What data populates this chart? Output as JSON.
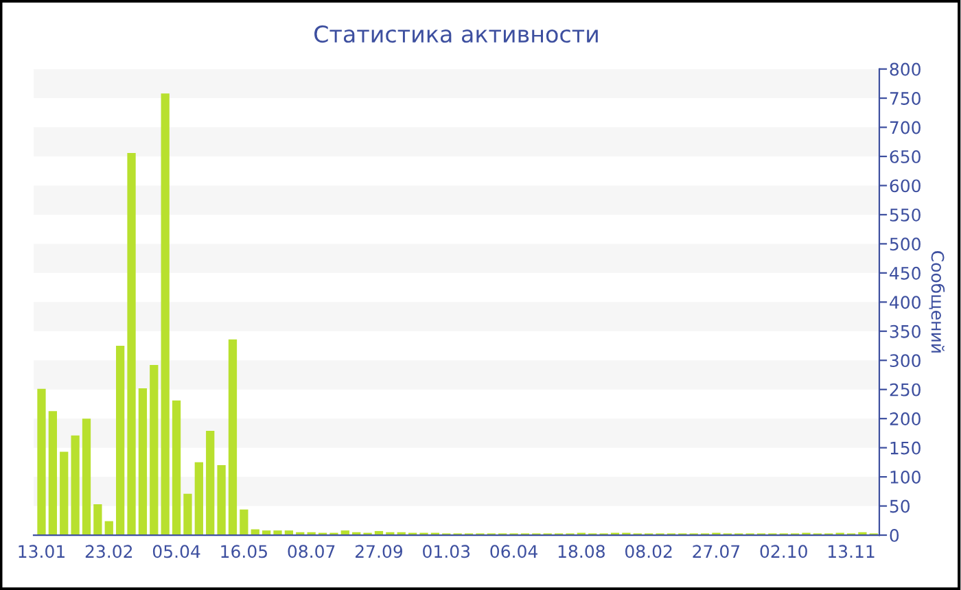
{
  "chart_data": {
    "type": "bar",
    "title": "Статистика активности",
    "ylabel": "Сообщений",
    "color": "#b8e02e",
    "categories": [
      "13.01",
      null,
      null,
      null,
      null,
      null,
      "23.02",
      null,
      null,
      null,
      null,
      null,
      "05.04",
      null,
      null,
      null,
      null,
      null,
      "16.05",
      null,
      null,
      null,
      null,
      null,
      "08.07",
      null,
      null,
      null,
      null,
      null,
      "27.09",
      null,
      null,
      null,
      null,
      null,
      "01.03",
      null,
      null,
      null,
      null,
      null,
      "06.04",
      null,
      null,
      null,
      null,
      null,
      "18.08",
      null,
      null,
      null,
      null,
      null,
      "08.02",
      null,
      null,
      null,
      null,
      null,
      "27.07",
      null,
      null,
      null,
      null,
      null,
      "02.10",
      null,
      null,
      null,
      null,
      null,
      "13.11",
      null,
      null
    ],
    "values": [
      251,
      213,
      143,
      171,
      200,
      53,
      24,
      325,
      656,
      252,
      292,
      758,
      231,
      71,
      125,
      179,
      120,
      336,
      44,
      10,
      8,
      8,
      8,
      5,
      5,
      4,
      4,
      8,
      5,
      4,
      7,
      5,
      5,
      4,
      4,
      4,
      3,
      3,
      3,
      3,
      3,
      3,
      3,
      3,
      3,
      3,
      3,
      3,
      4,
      3,
      3,
      4,
      4,
      3,
      3,
      3,
      3,
      3,
      3,
      3,
      4,
      3,
      3,
      3,
      3,
      3,
      3,
      3,
      4,
      3,
      3,
      4,
      3,
      5,
      3
    ],
    "ylim": [
      0,
      800
    ],
    "yticks": [
      0,
      50,
      100,
      150,
      200,
      250,
      300,
      350,
      400,
      450,
      500,
      550,
      600,
      650,
      700,
      750,
      800
    ],
    "bands": [
      {
        "axis": "y",
        "from": 50,
        "to": 100,
        "color": "#f6f6f6"
      },
      {
        "axis": "y",
        "from": 150,
        "to": 200,
        "color": "#f6f6f6"
      },
      {
        "axis": "y",
        "from": 250,
        "to": 300,
        "color": "#f6f6f6"
      },
      {
        "axis": "y",
        "from": 350,
        "to": 400,
        "color": "#f6f6f6"
      },
      {
        "axis": "y",
        "from": 450,
        "to": 500,
        "color": "#f6f6f6"
      },
      {
        "axis": "y",
        "from": 550,
        "to": 600,
        "color": "#f6f6f6"
      },
      {
        "axis": "y",
        "from": 650,
        "to": 700,
        "color": "#f6f6f6"
      },
      {
        "axis": "y",
        "from": 750,
        "to": 800,
        "color": "#f6f6f6"
      }
    ]
  }
}
